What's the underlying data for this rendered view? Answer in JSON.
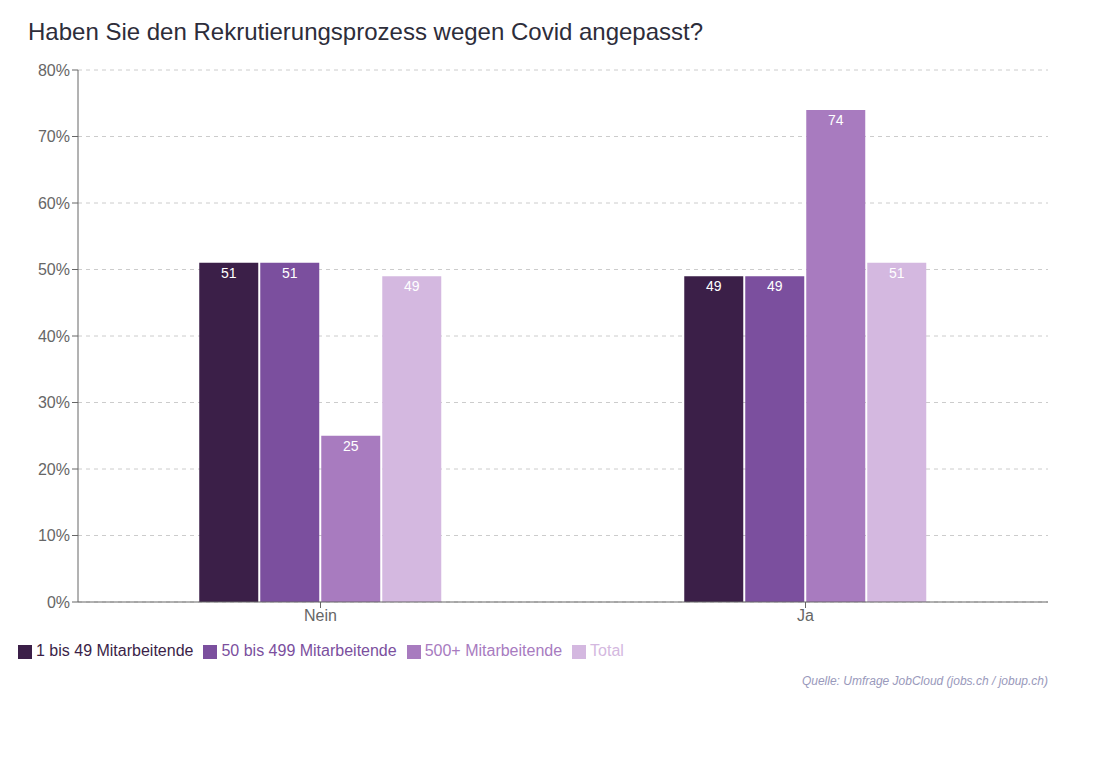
{
  "chart_data": {
    "type": "bar",
    "title": "Haben Sie den Rekrutierungsprozess wegen Covid angepasst?",
    "categories": [
      "Nein",
      "Ja"
    ],
    "series": [
      {
        "name": "1 bis 49 Mitarbeitende",
        "color": "#3b1f48",
        "values": [
          51,
          49
        ]
      },
      {
        "name": "50 bis 499 Mitarbeitende",
        "color": "#7b4f9e",
        "values": [
          51,
          49
        ]
      },
      {
        "name": "500+ Mitarbeitende",
        "color": "#a87bbf",
        "values": [
          25,
          74
        ]
      },
      {
        "name": "Total",
        "color": "#d4b8e0",
        "values": [
          49,
          51
        ]
      }
    ],
    "ylim": [
      0,
      80
    ],
    "yticks": [
      {
        "value": 0,
        "label": "0%"
      },
      {
        "value": 10,
        "label": "10%"
      },
      {
        "value": 20,
        "label": "20%"
      },
      {
        "value": 30,
        "label": "30%"
      },
      {
        "value": 40,
        "label": "40%"
      },
      {
        "value": 50,
        "label": "50%"
      },
      {
        "value": 60,
        "label": "60%"
      },
      {
        "value": 70,
        "label": "70%"
      },
      {
        "value": 80,
        "label": "80%"
      }
    ],
    "grid": true,
    "legend": "lower left",
    "data_labels": true,
    "annotations": [
      "Quelle: Umfrage JobCloud (jobs.ch / jobup.ch)"
    ]
  }
}
